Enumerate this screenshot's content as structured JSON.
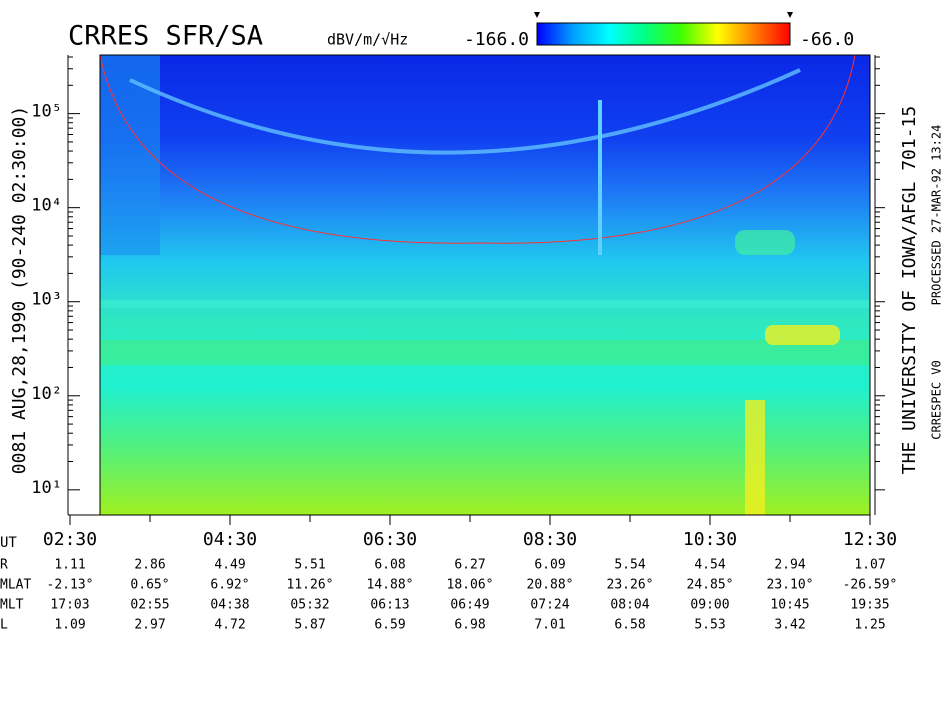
{
  "chart_data": {
    "type": "spectrogram",
    "title": "CRRES SFR/SA",
    "colorbar": {
      "label": "dBV/m/√Hz",
      "ticks": [
        {
          "value": -166,
          "label": "-166.0"
        },
        {
          "value": -66,
          "label": "-66.0"
        }
      ],
      "colors": [
        "#0000ff",
        "#00a0ff",
        "#00ffff",
        "#00ff80",
        "#40ff00",
        "#ffff00",
        "#ff8000",
        "#ff0000"
      ]
    },
    "ylabel": "0081  AUG,28,1990  (90-240 02:30:00)",
    "right_texts": [
      "THE UNIVERSITY OF IOWA/AFGL 701-15",
      "PROCESSED 27-MAR-92  13:24",
      "CRRESPEC V0"
    ],
    "log_y": true,
    "ylim": [
      5.4,
      420000
    ],
    "yticks": [
      {
        "value": 10,
        "label": "10¹"
      },
      {
        "value": 100,
        "label": "10²"
      },
      {
        "value": 1000,
        "label": "10³"
      },
      {
        "value": 10000,
        "label": "10⁴"
      },
      {
        "value": 100000,
        "label": "10⁵"
      }
    ],
    "xlim": [
      2.5,
      12.5
    ],
    "xticks": [
      {
        "value": 2.5,
        "label": "02:30"
      },
      {
        "value": 4.5,
        "label": "04:30"
      },
      {
        "value": 6.5,
        "label": "06:30"
      },
      {
        "value": 8.5,
        "label": "08:30"
      },
      {
        "value": 10.5,
        "label": "10:30"
      },
      {
        "value": 12.5,
        "label": "12:30"
      }
    ],
    "xticks_minor": [
      3.5,
      5.5,
      7.5,
      9.5,
      11.5
    ],
    "xlabel": "UT",
    "ephemeris": [
      {
        "name": "R",
        "values": [
          "1.11",
          "2.86",
          "4.49",
          "5.51",
          "6.08",
          "6.27",
          "6.09",
          "5.54",
          "4.54",
          "2.94",
          "1.07"
        ]
      },
      {
        "name": "MLAT",
        "values": [
          "-2.13°",
          "0.65°",
          "6.92°",
          "11.26°",
          "14.88°",
          "18.06°",
          "20.88°",
          "23.26°",
          "24.85°",
          "23.10°",
          "-26.59°"
        ]
      },
      {
        "name": "MLT",
        "values": [
          "17:03",
          "02:55",
          "04:38",
          "05:32",
          "06:13",
          "06:49",
          "07:24",
          "08:04",
          "09:00",
          "10:45",
          "19:35"
        ]
      },
      {
        "name": "L",
        "values": [
          "1.09",
          "2.97",
          "4.72",
          "5.87",
          "6.59",
          "6.98",
          "7.01",
          "6.58",
          "5.53",
          "3.42",
          "1.25"
        ]
      }
    ]
  }
}
